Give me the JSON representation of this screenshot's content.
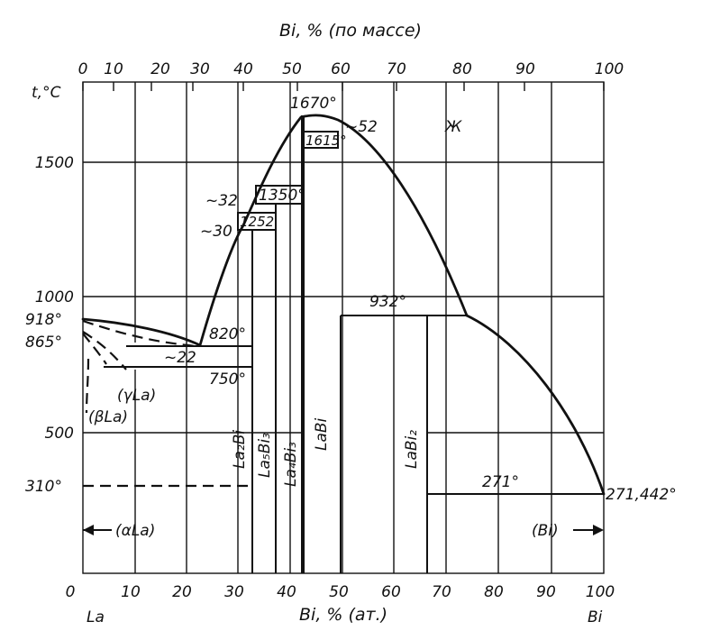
{
  "top_axis": {
    "title": "Bi, % (по массе)",
    "ticks": [
      "0",
      "10",
      "20",
      "30",
      "40",
      "50",
      "60",
      "70",
      "80",
      "90",
      "100"
    ]
  },
  "bottom_axis": {
    "title": "Bi, % (ат.)",
    "left_element": "La",
    "right_element": "Bi",
    "ticks": [
      "0",
      "10",
      "20",
      "30",
      "40",
      "50",
      "60",
      "70",
      "80",
      "90",
      "100"
    ]
  },
  "y_axis": {
    "title": "t,°C",
    "ticks": [
      "1500",
      "1000",
      "500"
    ]
  },
  "temperatures": {
    "la_melt": "918°",
    "la_trans1": "865°",
    "la_trans2": "310°",
    "t820": "820°",
    "t750": "750°",
    "t1252": "1252",
    "t1350": "1350°",
    "t1670": "1670°",
    "t1615": "1615°",
    "t932": "932°",
    "t271": "271°",
    "bi_melt": "271,442°"
  },
  "compositions": {
    "c22": "~22",
    "c30": "~30",
    "c32": "~32",
    "c52": "~52"
  },
  "phases": {
    "liquid": "Ж",
    "gamma_la": "(γLa)",
    "beta_la": "(βLa)",
    "alpha_la": "(αLa)",
    "bi_solid": "(Bi)",
    "la2bi": "La₂Bi",
    "la5bi3": "La₅Bi₃",
    "la4bi3": "La₄Bi₃",
    "labi": "LaBi",
    "labi2": "LaBi₂"
  },
  "chart_data": {
    "type": "phase-diagram",
    "system": [
      "La",
      "Bi"
    ],
    "x_units": "Bi, at.%",
    "y_units": "°C",
    "xlim": [
      0,
      100
    ],
    "ylim": [
      0,
      1700
    ],
    "invariants": [
      {
        "t": 918,
        "phase": "La melting"
      },
      {
        "t": 865,
        "phase": "La transformation"
      },
      {
        "t": 310,
        "phase": "La transformation"
      },
      {
        "t": 820,
        "x": 22
      },
      {
        "t": 750
      },
      {
        "t": 1252,
        "x": 30
      },
      {
        "t": 1350,
        "x": 32
      },
      {
        "t": 1670,
        "x": 50
      },
      {
        "t": 1615,
        "x": 52
      },
      {
        "t": 932
      },
      {
        "t": 271
      },
      {
        "t": 271.442,
        "x": 100,
        "phase": "Bi melting"
      }
    ],
    "compounds": [
      {
        "name": "La2Bi",
        "x": 33.3
      },
      {
        "name": "La5Bi3",
        "x": 37.5
      },
      {
        "name": "La4Bi3",
        "x": 42.9
      },
      {
        "name": "LaBi",
        "x": 50
      },
      {
        "name": "LaBi2",
        "x": 66.7
      }
    ]
  }
}
